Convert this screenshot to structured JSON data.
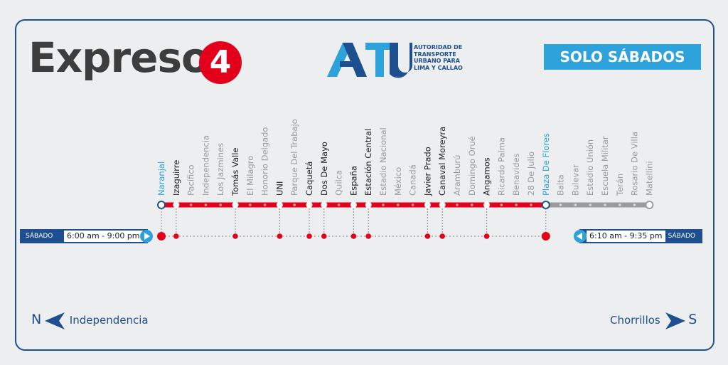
{
  "title": "Expreso",
  "route_number": "4",
  "logo": {
    "lettering": "ATU",
    "text": [
      "AUTORIDAD DE",
      "TRANSPORTE",
      "URBANO PARA",
      "LIMA Y CALLAO"
    ]
  },
  "badge": "SOLO SÁBADOS",
  "colors": {
    "navy": "#1e4f8f",
    "red": "#e2001a",
    "sky": "#2ea3db",
    "grey": "#9b9b9b",
    "dark": "#222222"
  },
  "stations": [
    {
      "name": "Naranjal",
      "style": "terminal"
    },
    {
      "name": "Izaguirre",
      "style": "stop"
    },
    {
      "name": "Pacífico",
      "style": "skip"
    },
    {
      "name": "Independencia",
      "style": "skip"
    },
    {
      "name": "Los Jazmines",
      "style": "skip"
    },
    {
      "name": "Tomás Valle",
      "style": "stop"
    },
    {
      "name": "El Milagro",
      "style": "skip"
    },
    {
      "name": "Honorio Delgado",
      "style": "skip"
    },
    {
      "name": "UNI",
      "style": "stop"
    },
    {
      "name": "Parque Del Trabajo",
      "style": "skip"
    },
    {
      "name": "Caquetá",
      "style": "stop"
    },
    {
      "name": "Dos De Mayo",
      "style": "stop"
    },
    {
      "name": "Quilca",
      "style": "skip"
    },
    {
      "name": "España",
      "style": "stop"
    },
    {
      "name": "Estación Central",
      "style": "stop"
    },
    {
      "name": "Estadio Nacional",
      "style": "skip"
    },
    {
      "name": "México",
      "style": "skip"
    },
    {
      "name": "Canadá",
      "style": "skip"
    },
    {
      "name": "Javier Prado",
      "style": "stop"
    },
    {
      "name": "Canaval Moreyra",
      "style": "stop"
    },
    {
      "name": "Aramburú",
      "style": "skip"
    },
    {
      "name": "Domingo Orué",
      "style": "skip"
    },
    {
      "name": "Angamos",
      "style": "stop"
    },
    {
      "name": "Ricardo Palma",
      "style": "skip"
    },
    {
      "name": "Benavides",
      "style": "skip"
    },
    {
      "name": "28 De Julio",
      "style": "skip"
    },
    {
      "name": "Plaza De Flores",
      "style": "terminal"
    },
    {
      "name": "Balta",
      "style": "outside"
    },
    {
      "name": "Bulevar",
      "style": "outside"
    },
    {
      "name": "Estadio Unión",
      "style": "outside"
    },
    {
      "name": "Escuela Militar",
      "style": "outside"
    },
    {
      "name": "Terán",
      "style": "outside"
    },
    {
      "name": "Rosario De Villa",
      "style": "outside"
    },
    {
      "name": "Matellini",
      "style": "outside"
    }
  ],
  "schedule_left": {
    "day": "SÁBADO",
    "hours": "6:00 am - 9:00 pm"
  },
  "schedule_right": {
    "day": "SÁBADO",
    "hours": "6:10 am - 9:35 pm"
  },
  "direction_north": {
    "letter": "N",
    "label": "Independencia"
  },
  "direction_south": {
    "letter": "S",
    "label": "Chorrillos"
  }
}
